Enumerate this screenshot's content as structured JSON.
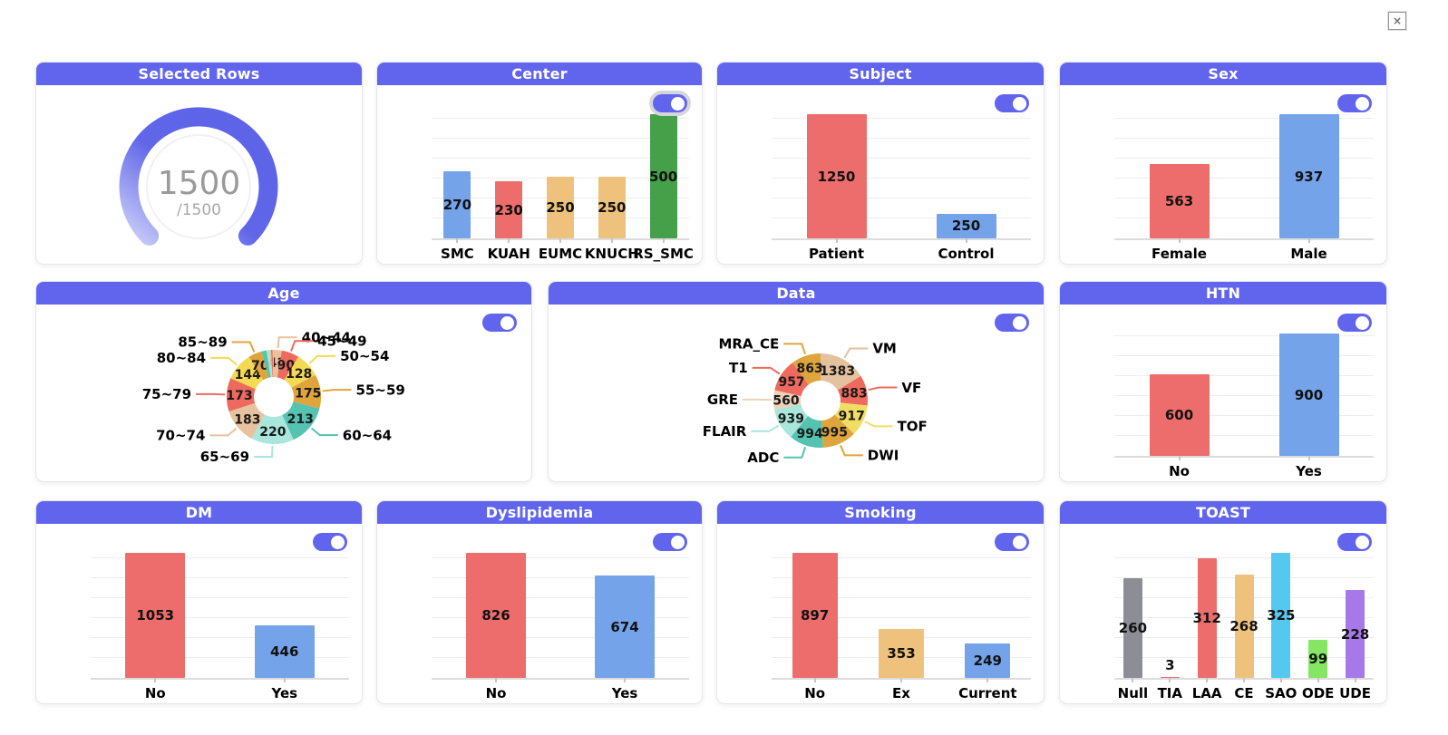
{
  "window": {
    "close_icon": "×"
  },
  "theme": {
    "header_bg": "#6165ee",
    "toggle_on": "#6165ee",
    "grid_line": "#ededed",
    "bar_red": "#ed6d6d",
    "bar_blue": "#74a3ea",
    "bar_orange": "#eec27c",
    "bar_green": "#45a149"
  },
  "gauge": {
    "title": "Selected Rows",
    "value": "1500",
    "denominator": "/1500",
    "arc_color": "#6066e8",
    "arc_color_light": "#c9ccf8"
  },
  "chart_data": [
    {
      "id": "center",
      "type": "bar",
      "title": "Center",
      "toggle": "on",
      "categories": [
        "SMC",
        "KUAH",
        "EUMC",
        "KNUCH",
        "RS_SMC"
      ],
      "values": [
        270,
        230,
        250,
        250,
        500
      ],
      "colors": [
        "#74a3ea",
        "#ed6d6d",
        "#eec27c",
        "#eec27c",
        "#45a149"
      ]
    },
    {
      "id": "subject",
      "type": "bar",
      "title": "Subject",
      "toggle": "on",
      "categories": [
        "Patient",
        "Control"
      ],
      "values": [
        1250,
        250
      ],
      "colors": [
        "#ed6d6d",
        "#74a3ea"
      ]
    },
    {
      "id": "sex",
      "type": "bar",
      "title": "Sex",
      "toggle": "on",
      "categories": [
        "Female",
        "Male"
      ],
      "values": [
        563,
        937
      ],
      "colors": [
        "#ed6d6d",
        "#74a3ea"
      ]
    },
    {
      "id": "age",
      "type": "donut",
      "title": "Age",
      "toggle": "on",
      "segments": [
        {
          "label": "40~44",
          "value": 41,
          "color": "#e7c29e"
        },
        {
          "label": "45~49",
          "value": 90,
          "color": "#ee6a5f"
        },
        {
          "label": "50~54",
          "value": 128,
          "color": "#f4da52"
        },
        {
          "label": "55~59",
          "value": 175,
          "color": "#dfa53c"
        },
        {
          "label": "60~64",
          "value": 213,
          "color": "#54c3b2"
        },
        {
          "label": "65~69",
          "value": 220,
          "color": "#a9e6db"
        },
        {
          "label": "70~74",
          "value": 183,
          "color": "#e7c29e"
        },
        {
          "label": "75~79",
          "value": 173,
          "color": "#ee6a5f"
        },
        {
          "label": "80~84",
          "value": 144,
          "color": "#f4da52"
        },
        {
          "label": "85~89",
          "value": 70,
          "color": "#dfa53c"
        }
      ],
      "unlabeled_segments": [
        {
          "value": 26,
          "color": "#54c3b2"
        },
        {
          "value": 14,
          "color": "#a9e6db"
        },
        {
          "value": 9,
          "color": "#e7c29e"
        },
        {
          "value": 8,
          "color": "#ee6a5f"
        },
        {
          "value": 6,
          "color": "#f4da52"
        }
      ]
    },
    {
      "id": "data",
      "type": "donut",
      "title": "Data",
      "toggle": "on",
      "segments": [
        {
          "label": "VM",
          "value": 1383,
          "color": "#e4c2a0"
        },
        {
          "label": "VF",
          "value": 883,
          "color": "#ee6a5f"
        },
        {
          "label": "TOF",
          "value": 917,
          "color": "#f2dd64"
        },
        {
          "label": "DWI",
          "value": 995,
          "color": "#dfa53c"
        },
        {
          "label": "ADC",
          "value": 994,
          "color": "#54c3b2"
        },
        {
          "label": "FLAIR",
          "value": 939,
          "color": "#a9e6db"
        },
        {
          "label": "GRE",
          "value": 560,
          "color": "#eed2b8"
        },
        {
          "label": "T1",
          "value": 957,
          "color": "#ee6a5f"
        },
        {
          "label": "MRA_CE",
          "value": 863,
          "color": "#dfa53c"
        }
      ]
    },
    {
      "id": "htn",
      "type": "bar",
      "title": "HTN",
      "toggle": "on",
      "categories": [
        "No",
        "Yes"
      ],
      "values": [
        600,
        900
      ],
      "colors": [
        "#ed6d6d",
        "#74a3ea"
      ]
    },
    {
      "id": "dm",
      "type": "bar",
      "title": "DM",
      "toggle": "on",
      "categories": [
        "No",
        "Yes"
      ],
      "values": [
        1053,
        446
      ],
      "colors": [
        "#ed6d6d",
        "#74a3ea"
      ]
    },
    {
      "id": "dyslipidemia",
      "type": "bar",
      "title": "Dyslipidemia",
      "toggle": "on",
      "categories": [
        "No",
        "Yes"
      ],
      "values": [
        826,
        674
      ],
      "colors": [
        "#ed6d6d",
        "#74a3ea"
      ]
    },
    {
      "id": "smoking",
      "type": "bar",
      "title": "Smoking",
      "toggle": "on",
      "categories": [
        "No",
        "Ex",
        "Current"
      ],
      "values": [
        897,
        353,
        249
      ],
      "colors": [
        "#ed6d6d",
        "#eec27c",
        "#74a3ea"
      ]
    },
    {
      "id": "toast",
      "type": "bar",
      "title": "TOAST",
      "toggle": "on",
      "categories": [
        "Null",
        "TIA",
        "LAA",
        "CE",
        "SAO",
        "ODE",
        "UDE"
      ],
      "values": [
        260,
        3,
        312,
        268,
        325,
        99,
        228
      ],
      "colors": [
        "#8d8d96",
        "#ed6d6d",
        "#ed6d6d",
        "#eec27c",
        "#55c8f0",
        "#84e662",
        "#a678e8"
      ]
    }
  ]
}
